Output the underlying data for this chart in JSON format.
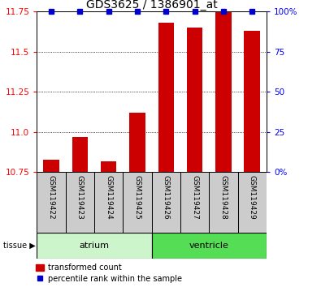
{
  "title": "GDS3625 / 1386901_at",
  "samples": [
    "GSM119422",
    "GSM119423",
    "GSM119424",
    "GSM119425",
    "GSM119426",
    "GSM119427",
    "GSM119428",
    "GSM119429"
  ],
  "red_values": [
    10.83,
    10.97,
    10.82,
    11.12,
    11.68,
    11.65,
    11.75,
    11.63
  ],
  "blue_values": [
    100,
    100,
    100,
    100,
    100,
    100,
    100,
    100
  ],
  "ylim_left": [
    10.75,
    11.75
  ],
  "ylim_right": [
    0,
    100
  ],
  "yticks_left": [
    10.75,
    11.0,
    11.25,
    11.5,
    11.75
  ],
  "ytick_labels_right": [
    "0%",
    "25",
    "50",
    "75",
    "100%"
  ],
  "yticks_right": [
    0,
    25,
    50,
    75,
    100
  ],
  "atrium_color": "#ccf5cc",
  "ventricle_color": "#55dd55",
  "sample_box_color": "#cccccc",
  "bar_color": "#cc0000",
  "blue_color": "#0000cc",
  "bar_width": 0.55,
  "legend_red_label": "transformed count",
  "legend_blue_label": "percentile rank within the sample",
  "title_fontsize": 10,
  "tick_fontsize": 7.5,
  "sample_fontsize": 6.5,
  "tissue_fontsize": 8
}
